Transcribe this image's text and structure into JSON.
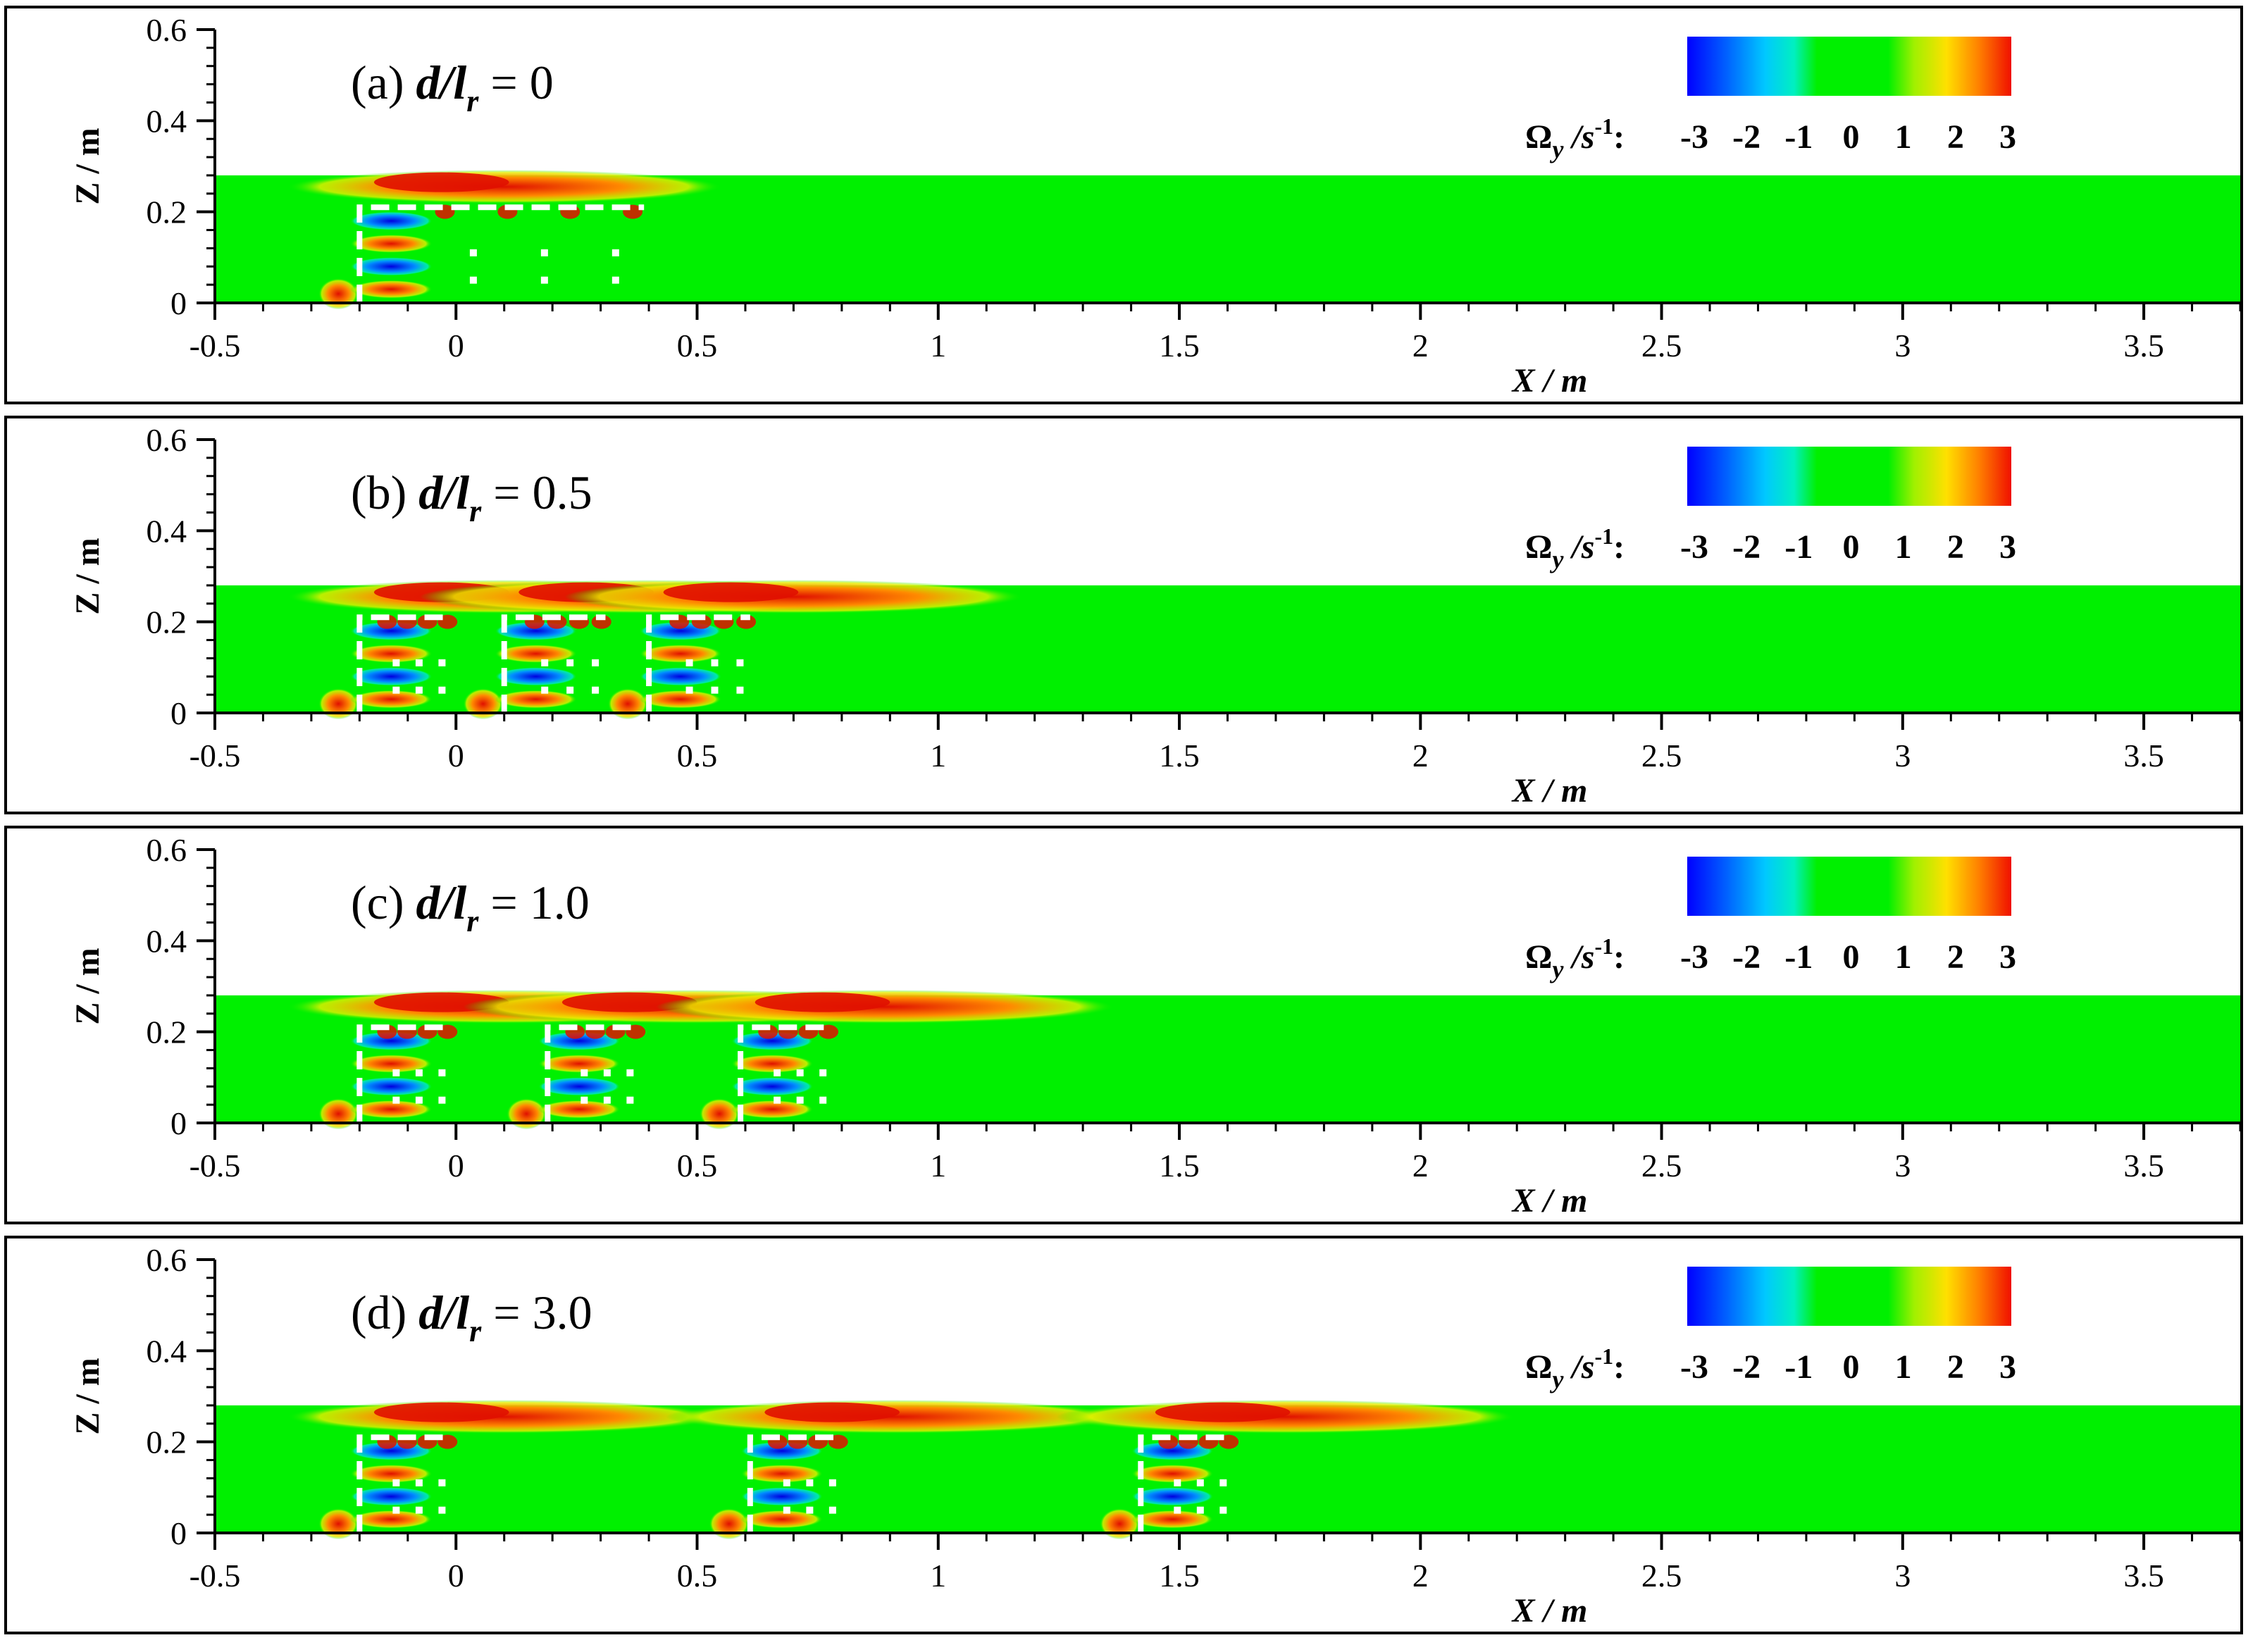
{
  "chart_data": [
    {
      "type": "heatmap",
      "panel_label": "(a)",
      "ratio_label": "d/l",
      "ratio_sub": "r",
      "ratio_value": "= 0",
      "xlabel": "X / m",
      "ylabel": "Z / m",
      "xlim": [
        -0.5,
        3.7
      ],
      "ylim": [
        0,
        0.6
      ],
      "x_ticks": [
        "-0.5",
        "0",
        "0.5",
        "1",
        "1.5",
        "2",
        "2.5",
        "3",
        "3.5"
      ],
      "x_tick_values": [
        -0.5,
        0,
        0.5,
        1,
        1.5,
        2,
        2.5,
        3,
        3.5
      ],
      "y_ticks": [
        "0",
        "0.2",
        "0.4",
        "0.6"
      ],
      "y_tick_values": [
        0,
        0.2,
        0.4,
        0.6
      ],
      "water_depth": 0.28,
      "canopy_height": 0.21,
      "canopy_patches": [
        [
          -0.2,
          0.39
        ]
      ],
      "colorbar": {
        "label": "Ω",
        "sub": "y",
        "unit": " /s",
        "sup": "-1",
        "colon": ":",
        "ticks": [
          "-3",
          "-2",
          "-1",
          "0",
          "1",
          "2",
          "3"
        ],
        "range": [
          -3,
          3
        ]
      }
    },
    {
      "type": "heatmap",
      "panel_label": "(b)",
      "ratio_label": "d/l",
      "ratio_sub": "r",
      "ratio_value": "= 0.5",
      "xlabel": "X / m",
      "ylabel": "Z / m",
      "xlim": [
        -0.5,
        3.7
      ],
      "ylim": [
        0,
        0.6
      ],
      "x_ticks": [
        "-0.5",
        "0",
        "0.5",
        "1",
        "1.5",
        "2",
        "2.5",
        "3",
        "3.5"
      ],
      "x_tick_values": [
        -0.5,
        0,
        0.5,
        1,
        1.5,
        2,
        2.5,
        3,
        3.5
      ],
      "y_ticks": [
        "0",
        "0.2",
        "0.4",
        "0.6"
      ],
      "y_tick_values": [
        0,
        0.2,
        0.4,
        0.6
      ],
      "water_depth": 0.28,
      "canopy_height": 0.21,
      "canopy_patches": [
        [
          -0.2,
          -0.01
        ],
        [
          0.1,
          0.31
        ],
        [
          0.4,
          0.61
        ]
      ],
      "colorbar": {
        "label": "Ω",
        "sub": "y",
        "unit": " /s",
        "sup": "-1",
        "colon": ":",
        "ticks": [
          "-3",
          "-2",
          "-1",
          "0",
          "1",
          "2",
          "3"
        ],
        "range": [
          -3,
          3
        ]
      }
    },
    {
      "type": "heatmap",
      "panel_label": "(c)",
      "ratio_label": "d/l",
      "ratio_sub": "r",
      "ratio_value": "= 1.0",
      "xlabel": "X / m",
      "ylabel": "Z / m",
      "xlim": [
        -0.5,
        3.7
      ],
      "ylim": [
        0,
        0.6
      ],
      "x_ticks": [
        "-0.5",
        "0",
        "0.5",
        "1",
        "1.5",
        "2",
        "2.5",
        "3",
        "3.5"
      ],
      "x_tick_values": [
        -0.5,
        0,
        0.5,
        1,
        1.5,
        2,
        2.5,
        3,
        3.5
      ],
      "y_ticks": [
        "0",
        "0.2",
        "0.4",
        "0.6"
      ],
      "y_tick_values": [
        0,
        0.2,
        0.4,
        0.6
      ],
      "water_depth": 0.28,
      "canopy_height": 0.21,
      "canopy_patches": [
        [
          -0.2,
          -0.01
        ],
        [
          0.19,
          0.38
        ],
        [
          0.59,
          0.78
        ]
      ],
      "colorbar": {
        "label": "Ω",
        "sub": "y",
        "unit": " /s",
        "sup": "-1",
        "colon": ":",
        "ticks": [
          "-3",
          "-2",
          "-1",
          "0",
          "1",
          "2",
          "3"
        ],
        "range": [
          -3,
          3
        ]
      }
    },
    {
      "type": "heatmap",
      "panel_label": "(d)",
      "ratio_label": "d/l",
      "ratio_sub": "r",
      "ratio_value": "= 3.0",
      "xlabel": "X / m",
      "ylabel": "Z / m",
      "xlim": [
        -0.5,
        3.7
      ],
      "ylim": [
        0,
        0.6
      ],
      "x_ticks": [
        "-0.5",
        "0",
        "0.5",
        "1",
        "1.5",
        "2",
        "2.5",
        "3",
        "3.5"
      ],
      "x_tick_values": [
        -0.5,
        0,
        0.5,
        1,
        1.5,
        2,
        2.5,
        3,
        3.5
      ],
      "y_ticks": [
        "0",
        "0.2",
        "0.4",
        "0.6"
      ],
      "y_tick_values": [
        0,
        0.2,
        0.4,
        0.6
      ],
      "water_depth": 0.28,
      "canopy_height": 0.21,
      "canopy_patches": [
        [
          -0.2,
          -0.01
        ],
        [
          0.61,
          0.8
        ],
        [
          1.42,
          1.61
        ]
      ],
      "colorbar": {
        "label": "Ω",
        "sub": "y",
        "unit": " /s",
        "sup": "-1",
        "colon": ":",
        "ticks": [
          "-3",
          "-2",
          "-1",
          "0",
          "1",
          "2",
          "3"
        ],
        "range": [
          -3,
          3
        ]
      }
    }
  ],
  "colors": {
    "background_flow": "#00f000",
    "positive_vorticity": "#e82000",
    "negative_vorticity": "#0018f0",
    "canopy_outline": "#ffffff"
  }
}
